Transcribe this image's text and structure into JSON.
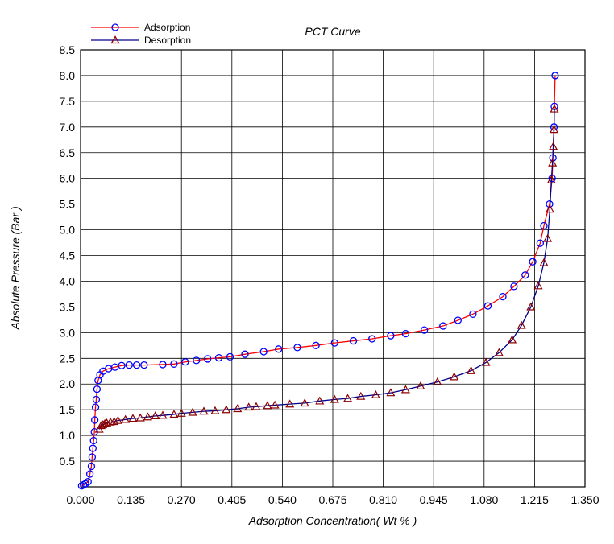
{
  "chart_data": {
    "type": "line",
    "title": "PCT Curve",
    "xlabel": "Adsorption Concentration( Wt % )",
    "ylabel": "Absolute Pressure  (Bar )",
    "xlim": [
      0,
      1.35
    ],
    "ylim": [
      0,
      8.5
    ],
    "xticks": [
      "0.000",
      "0.135",
      "0.270",
      "0.405",
      "0.540",
      "0.675",
      "0.810",
      "0.945",
      "1.080",
      "1.215",
      "1.350"
    ],
    "yticks": [
      "0.5",
      "1.0",
      "1.5",
      "2.0",
      "2.5",
      "3.0",
      "3.5",
      "4.0",
      "4.5",
      "5.0",
      "5.5",
      "6.0",
      "6.5",
      "7.0",
      "7.5",
      "8.0",
      "8.5"
    ],
    "grid": true,
    "legend_position": "top-left",
    "series": [
      {
        "name": "Adsorption",
        "line_color": "#ff0000",
        "marker_color": "#0000ff",
        "marker": "circle",
        "x": [
          0.003,
          0.008,
          0.013,
          0.02,
          0.025,
          0.029,
          0.031,
          0.033,
          0.035,
          0.037,
          0.038,
          0.04,
          0.042,
          0.044,
          0.047,
          0.052,
          0.06,
          0.075,
          0.092,
          0.11,
          0.13,
          0.15,
          0.17,
          0.22,
          0.25,
          0.28,
          0.31,
          0.34,
          0.37,
          0.4,
          0.44,
          0.49,
          0.53,
          0.58,
          0.63,
          0.68,
          0.73,
          0.78,
          0.83,
          0.87,
          0.92,
          0.97,
          1.01,
          1.05,
          1.09,
          1.13,
          1.16,
          1.19,
          1.21,
          1.23,
          1.24,
          1.255,
          1.262,
          1.264,
          1.267,
          1.268,
          1.27
        ],
        "y": [
          0.02,
          0.04,
          0.06,
          0.1,
          0.25,
          0.4,
          0.58,
          0.75,
          0.9,
          1.07,
          1.3,
          1.55,
          1.7,
          1.9,
          2.07,
          2.18,
          2.25,
          2.3,
          2.33,
          2.36,
          2.37,
          2.37,
          2.37,
          2.38,
          2.39,
          2.43,
          2.46,
          2.49,
          2.51,
          2.53,
          2.58,
          2.63,
          2.68,
          2.71,
          2.75,
          2.8,
          2.84,
          2.88,
          2.94,
          2.98,
          3.05,
          3.13,
          3.24,
          3.36,
          3.52,
          3.7,
          3.9,
          4.12,
          4.38,
          4.74,
          5.08,
          5.5,
          6.0,
          6.4,
          7.0,
          7.4,
          8.0
        ]
      },
      {
        "name": "Desorption",
        "line_color": "#00008b",
        "marker_color": "#8b0000",
        "marker": "triangle",
        "x": [
          1.268,
          1.267,
          1.265,
          1.263,
          1.26,
          1.256,
          1.25,
          1.24,
          1.225,
          1.205,
          1.18,
          1.155,
          1.12,
          1.085,
          1.045,
          1.0,
          0.955,
          0.91,
          0.87,
          0.83,
          0.79,
          0.75,
          0.715,
          0.68,
          0.64,
          0.6,
          0.56,
          0.52,
          0.5,
          0.47,
          0.45,
          0.42,
          0.39,
          0.36,
          0.33,
          0.3,
          0.27,
          0.25,
          0.22,
          0.2,
          0.18,
          0.16,
          0.14,
          0.12,
          0.1,
          0.09,
          0.08,
          0.07,
          0.065,
          0.06,
          0.055,
          0.05
        ],
        "y": [
          7.35,
          6.95,
          6.62,
          6.3,
          5.97,
          5.4,
          4.83,
          4.36,
          3.91,
          3.5,
          3.14,
          2.86,
          2.61,
          2.42,
          2.26,
          2.14,
          2.04,
          1.96,
          1.89,
          1.83,
          1.79,
          1.76,
          1.72,
          1.7,
          1.67,
          1.63,
          1.61,
          1.59,
          1.58,
          1.56,
          1.55,
          1.52,
          1.5,
          1.48,
          1.47,
          1.45,
          1.43,
          1.41,
          1.39,
          1.38,
          1.36,
          1.34,
          1.33,
          1.31,
          1.29,
          1.27,
          1.26,
          1.24,
          1.23,
          1.21,
          1.19,
          1.12
        ]
      }
    ]
  }
}
